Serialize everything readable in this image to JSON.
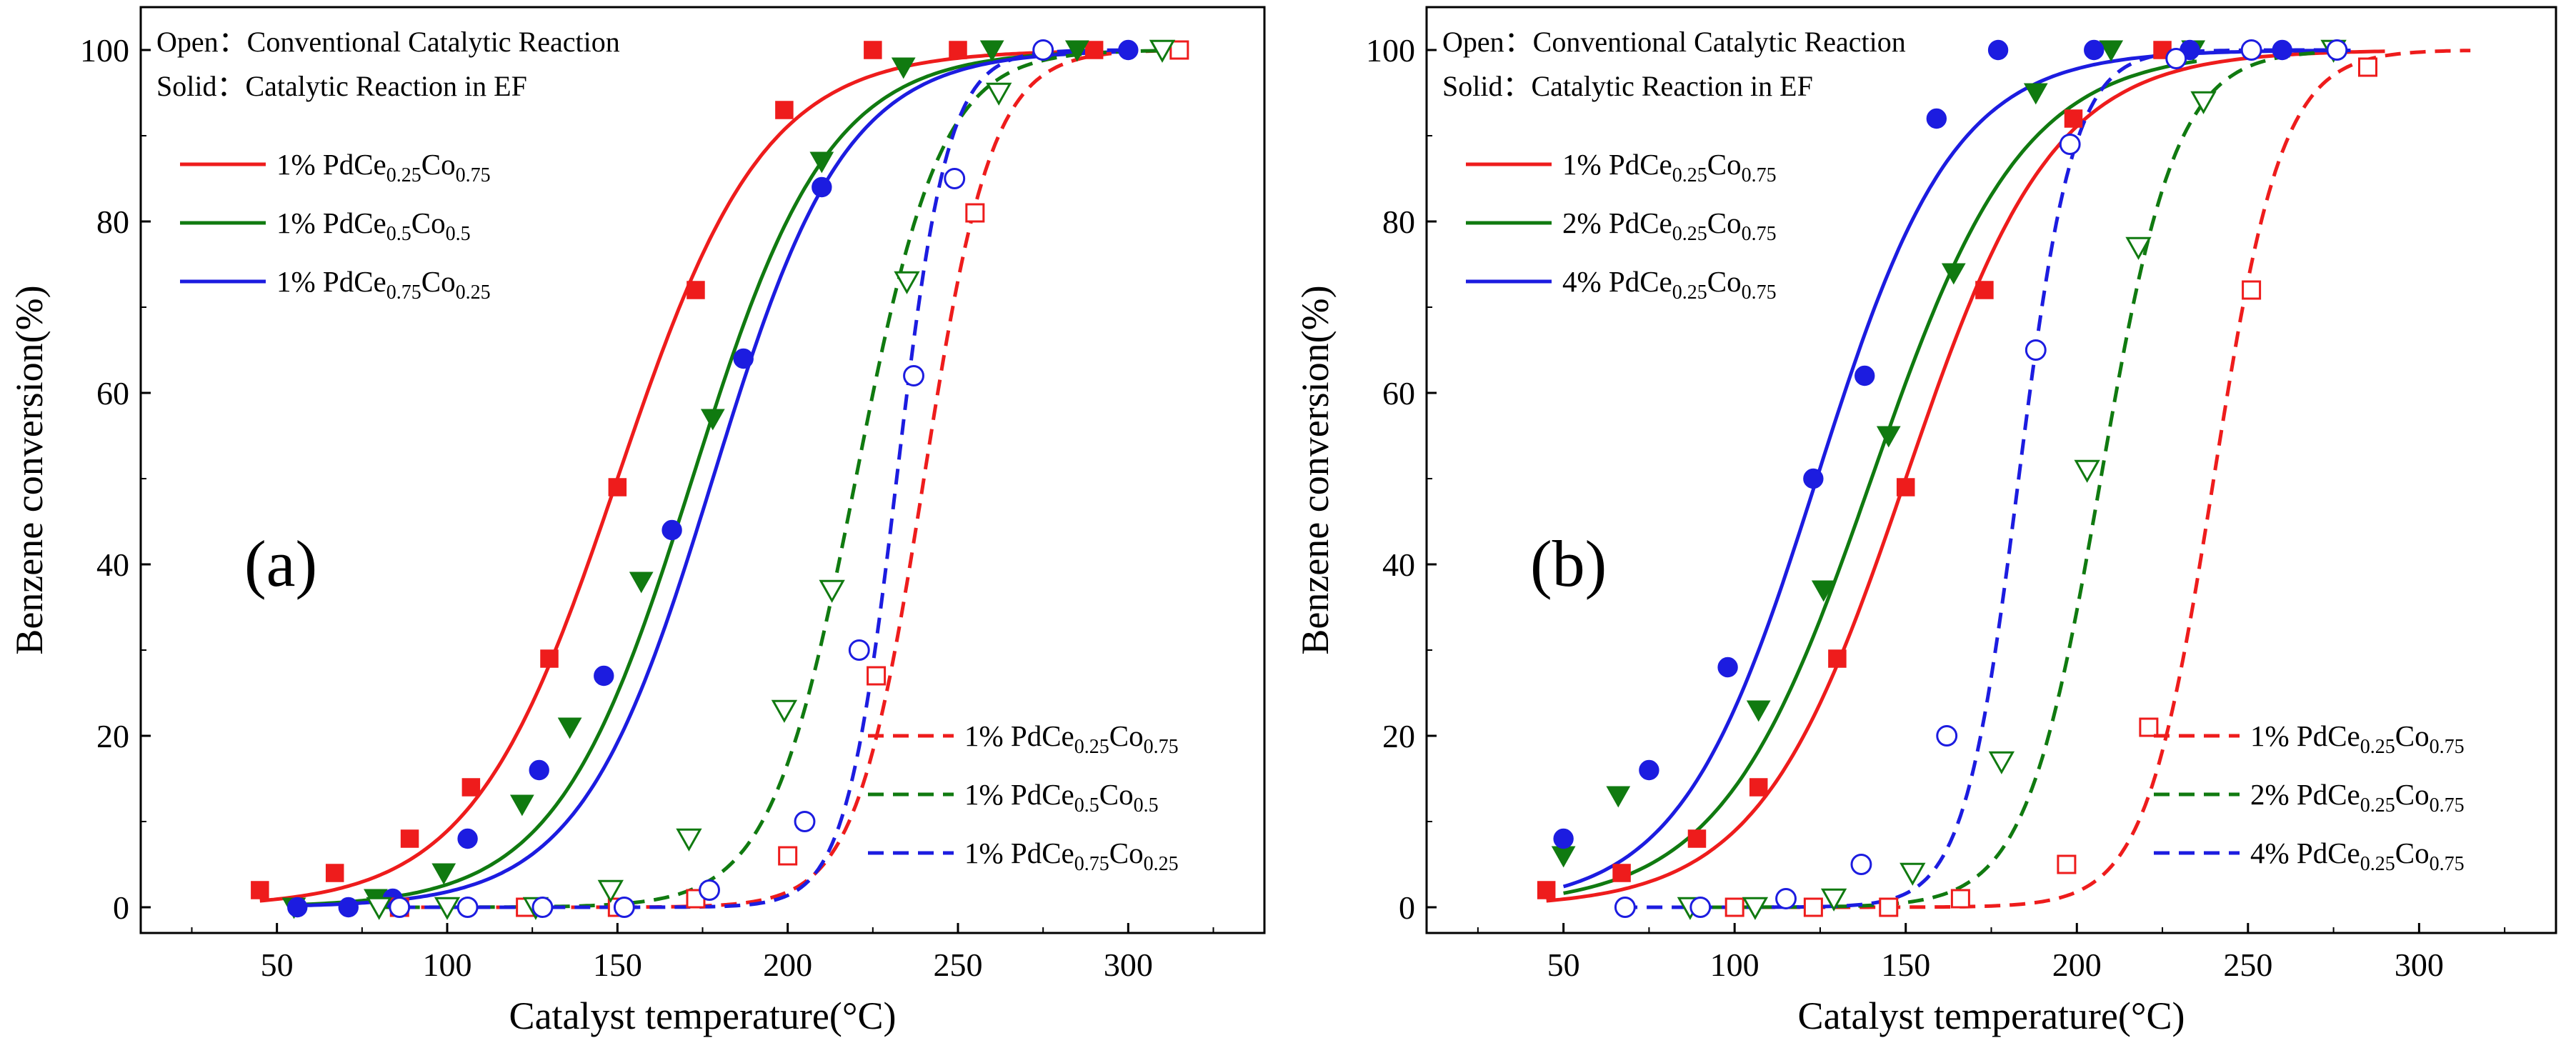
{
  "figure": {
    "panels": [
      "(a)",
      "(b)"
    ]
  },
  "chart_data": [
    {
      "type": "line",
      "panel_label": "(a)",
      "xlabel": "Catalyst temperature(°C)",
      "ylabel": "Benzene conversion(%)",
      "xlim": [
        10,
        340
      ],
      "ylim": [
        -3,
        105
      ],
      "xticks": [
        50,
        100,
        150,
        200,
        250,
        300
      ],
      "yticks": [
        0,
        20,
        40,
        60,
        80,
        100
      ],
      "grid": false,
      "notes": [
        {
          "key": "Open",
          "sep": "：",
          "text": "Conventional Catalytic Reaction"
        },
        {
          "key": "Solid",
          "sep": "：",
          "text": "Catalytic Reaction in EF"
        }
      ],
      "legend_solid": {
        "position": "upper-left",
        "entries": [
          {
            "series": 0,
            "prefix": "1% PdCe",
            "s1": "0.25",
            "mid": "Co",
            "s2": "0.75"
          },
          {
            "series": 1,
            "prefix": "1% PdCe",
            "s1": "0.5",
            "mid": "Co",
            "s2": "0.5"
          },
          {
            "series": 2,
            "prefix": "1% PdCe",
            "s1": "0.75",
            "mid": "Co",
            "s2": "0.25"
          }
        ]
      },
      "legend_dashed": {
        "position": "lower-right",
        "entries": [
          {
            "series": 3,
            "prefix": "1% PdCe",
            "s1": "0.25",
            "mid": "Co",
            "s2": "0.75"
          },
          {
            "series": 4,
            "prefix": "1% PdCe",
            "s1": "0.5",
            "mid": "Co",
            "s2": "0.5"
          },
          {
            "series": 5,
            "prefix": "1% PdCe",
            "s1": "0.75",
            "mid": "Co",
            "s2": "0.25"
          }
        ]
      },
      "series": [
        {
          "name": "1% PdCe0.25Co0.75 (EF)",
          "color": "#ee1c1c",
          "dash": false,
          "marker": "square",
          "filled": true,
          "fit": {
            "center": 150,
            "width": 21.5,
            "x_range": [
              45,
              290
            ]
          },
          "x": [
            45,
            67,
            89,
            107,
            130,
            150,
            173,
            199,
            225,
            250,
            290
          ],
          "y": [
            2,
            4,
            8,
            14,
            29,
            49,
            72,
            93,
            100,
            100,
            100
          ]
        },
        {
          "name": "1% PdCe0.5Co0.5 (EF)",
          "color": "#107a10",
          "dash": false,
          "marker": "triangle-down",
          "filled": true,
          "fit": {
            "center": 172,
            "width": 20,
            "x_range": [
              55,
              290
            ]
          },
          "x": [
            55,
            79,
            99,
            122,
            136,
            157,
            178,
            210,
            234,
            260,
            285
          ],
          "y": [
            0,
            1,
            4,
            12,
            21,
            38,
            57,
            87,
            98,
            100,
            100
          ]
        },
        {
          "name": "1% PdCe0.75Co0.25 (EF)",
          "color": "#1c1ce0",
          "dash": false,
          "marker": "circle",
          "filled": true,
          "fit": {
            "center": 178,
            "width": 19.5,
            "x_range": [
              55,
              300
            ]
          },
          "x": [
            56,
            71,
            84,
            106,
            127,
            146,
            166,
            187,
            210,
            275,
            300
          ],
          "y": [
            0,
            0,
            1,
            8,
            16,
            27,
            44,
            64,
            84,
            100,
            100
          ]
        },
        {
          "name": "1% PdCe0.25Co0.75 (conventional)",
          "color": "#ee1c1c",
          "dash": true,
          "marker": "square",
          "filled": false,
          "fit": {
            "center": 240,
            "width": 10,
            "x_range": [
              85,
              315
            ]
          },
          "x": [
            86,
            123,
            150,
            173,
            200,
            226,
            255,
            315
          ],
          "y": [
            0,
            0,
            0,
            1,
            6,
            27,
            81,
            100
          ]
        },
        {
          "name": "1% PdCe0.5Co0.5 (conventional)",
          "color": "#107a10",
          "dash": true,
          "marker": "triangle-down",
          "filled": false,
          "fit": {
            "center": 220,
            "width": 12.5,
            "x_range": [
              80,
              310
            ]
          },
          "x": [
            80,
            100,
            126,
            148,
            171,
            199,
            213,
            235,
            262,
            310
          ],
          "y": [
            0,
            0,
            0,
            2,
            8,
            23,
            37,
            73,
            95,
            100
          ]
        },
        {
          "name": "1% PdCe0.75Co0.25 (conventional)",
          "color": "#1c1ce0",
          "dash": true,
          "marker": "circle",
          "filled": false,
          "fit": {
            "center": 232,
            "width": 7.5,
            "x_range": [
              86,
              300
            ]
          },
          "x": [
            86,
            106,
            128,
            152,
            177,
            205,
            221,
            237,
            249,
            275
          ],
          "y": [
            0,
            0,
            0,
            0,
            2,
            10,
            30,
            62,
            85,
            100
          ]
        }
      ]
    },
    {
      "type": "line",
      "panel_label": "(b)",
      "xlabel": "Catalyst temperature(°C)",
      "ylabel": "Benzene conversion(%)",
      "xlim": [
        10,
        340
      ],
      "ylim": [
        -3,
        105
      ],
      "xticks": [
        50,
        100,
        150,
        200,
        250,
        300
      ],
      "yticks": [
        0,
        20,
        40,
        60,
        80,
        100
      ],
      "grid": false,
      "notes": [
        {
          "key": "Open",
          "sep": "：",
          "text": "Conventional Catalytic Reaction"
        },
        {
          "key": "Solid",
          "sep": "：",
          "text": "Catalytic Reaction in EF"
        }
      ],
      "legend_solid": {
        "position": "upper-left",
        "entries": [
          {
            "series": 0,
            "prefix": "1% PdCe",
            "s1": "0.25",
            "mid": "Co",
            "s2": "0.75"
          },
          {
            "series": 1,
            "prefix": "2% PdCe",
            "s1": "0.25",
            "mid": "Co",
            "s2": "0.75"
          },
          {
            "series": 2,
            "prefix": "4% PdCe",
            "s1": "0.25",
            "mid": "Co",
            "s2": "0.75"
          }
        ]
      },
      "legend_dashed": {
        "position": "lower-right",
        "entries": [
          {
            "series": 3,
            "prefix": "1% PdCe",
            "s1": "0.25",
            "mid": "Co",
            "s2": "0.75"
          },
          {
            "series": 4,
            "prefix": "2% PdCe",
            "s1": "0.25",
            "mid": "Co",
            "s2": "0.75"
          },
          {
            "series": 5,
            "prefix": "4% PdCe",
            "s1": "0.25",
            "mid": "Co",
            "s2": "0.75"
          }
        ]
      },
      "series": [
        {
          "name": "1% PdCe0.25Co0.75 (EF)",
          "color": "#ee1c1c",
          "dash": false,
          "marker": "square",
          "filled": true,
          "fit": {
            "center": 150,
            "width": 21.5,
            "x_range": [
              45,
              290
            ]
          },
          "x": [
            45,
            67,
            89,
            107,
            130,
            150,
            173,
            199,
            225
          ],
          "y": [
            2,
            4,
            8,
            14,
            29,
            49,
            72,
            92,
            100
          ]
        },
        {
          "name": "2% PdCe0.25Co0.75 (EF)",
          "color": "#107a10",
          "dash": false,
          "marker": "triangle-down",
          "filled": true,
          "fit": {
            "center": 140,
            "width": 22,
            "x_range": [
              50,
              235
            ]
          },
          "x": [
            50,
            66,
            107,
            126,
            145,
            164,
            188,
            210,
            234
          ],
          "y": [
            6,
            13,
            23,
            37,
            55,
            74,
            95,
            100,
            100
          ]
        },
        {
          "name": "4% PdCe0.25Co0.75 (EF)",
          "color": "#1c1ce0",
          "dash": false,
          "marker": "circle",
          "filled": true,
          "fit": {
            "center": 124,
            "width": 20,
            "x_range": [
              50,
              280
            ]
          },
          "x": [
            50,
            75,
            98,
            123,
            138,
            159,
            177,
            205,
            233,
            260
          ],
          "y": [
            8,
            16,
            28,
            50,
            62,
            92,
            100,
            100,
            100,
            100
          ]
        },
        {
          "name": "1% PdCe0.25Co0.75 (conventional)",
          "color": "#ee1c1c",
          "dash": true,
          "marker": "square",
          "filled": false,
          "fit": {
            "center": 240,
            "width": 10,
            "x_range": [
              100,
              315
            ]
          },
          "x": [
            100,
            123,
            145,
            166,
            197,
            221,
            251,
            285
          ],
          "y": [
            0,
            0,
            0,
            1,
            5,
            21,
            72,
            98
          ]
        },
        {
          "name": "2% PdCe0.25Co0.75 (conventional)",
          "color": "#107a10",
          "dash": true,
          "marker": "triangle-down",
          "filled": false,
          "fit": {
            "center": 207,
            "width": 11,
            "x_range": [
              85,
              270
            ]
          },
          "x": [
            87,
            106,
            129,
            152,
            178,
            203,
            218,
            237,
            275
          ],
          "y": [
            0,
            0,
            1,
            4,
            17,
            51,
            77,
            94,
            100
          ]
        },
        {
          "name": "4% PdCe0.25Co0.75 (conventional)",
          "color": "#1c1ce0",
          "dash": true,
          "marker": "circle",
          "filled": false,
          "fit": {
            "center": 183,
            "width": 8,
            "x_range": [
              67,
              278
            ]
          },
          "x": [
            68,
            90,
            115,
            137,
            162,
            188,
            198,
            229,
            251,
            276
          ],
          "y": [
            0,
            0,
            1,
            5,
            20,
            65,
            89,
            99,
            100,
            100
          ]
        }
      ]
    }
  ]
}
